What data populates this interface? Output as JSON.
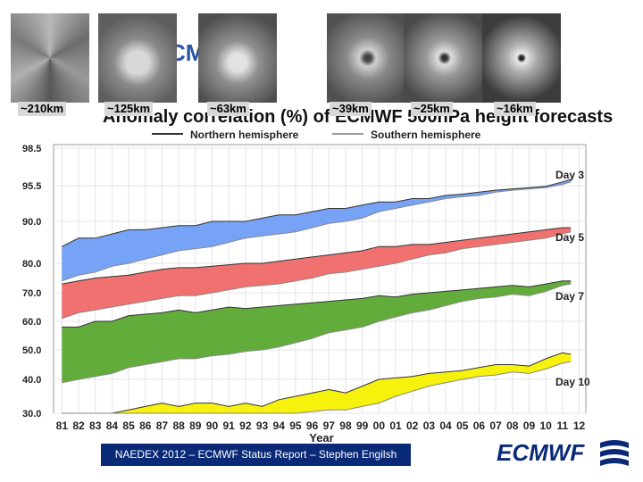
{
  "page": {
    "title_fragment": "tio  CMW  e",
    "footer": "NAEDEX 2012 – ECMWF Status Report – Stephen Engilsh",
    "brand": "ECMWF"
  },
  "resolutions": [
    "~210km",
    "~125km",
    "~63km",
    "~39km",
    "~25km",
    "~16km"
  ],
  "chart_data": {
    "type": "area",
    "title": "Anomaly correlation (%) of ECMWF 500hPa height forecasts",
    "xlabel": "Year",
    "ylabel": "",
    "x_tick_labels": [
      "81",
      "82",
      "83",
      "84",
      "85",
      "86",
      "87",
      "88",
      "89",
      "90",
      "91",
      "92",
      "93",
      "94",
      "95",
      "96",
      "97",
      "98",
      "99",
      "00",
      "01",
      "02",
      "03",
      "04",
      "05",
      "06",
      "07",
      "08",
      "09",
      "10",
      "11",
      "12"
    ],
    "x_range": [
      1981,
      2012
    ],
    "y_tick_labels": [
      "98.5",
      "95.5",
      "90.0",
      "80.0",
      "70.0",
      "60.0",
      "50.0",
      "40.0",
      "30.0"
    ],
    "y_ticks": [
      98.5,
      95.5,
      90.0,
      80.0,
      70.0,
      60.0,
      50.0,
      40.0,
      30.0
    ],
    "y_range": [
      30.0,
      98.5
    ],
    "legend": [
      {
        "name": "Northern hemisphere",
        "color": "#333333"
      },
      {
        "name": "Southern hemisphere",
        "color": "#999999"
      }
    ],
    "legend_position": "top",
    "grid": true,
    "series": [
      {
        "name": "Day 3",
        "color": "#6f9ef5",
        "nh": [
          [
            1981,
            84.0
          ],
          [
            1982,
            86.0
          ],
          [
            1983,
            86.0
          ],
          [
            1984,
            87.0
          ],
          [
            1985,
            88.0
          ],
          [
            1986,
            88.0
          ],
          [
            1987,
            88.5
          ],
          [
            1988,
            89.0
          ],
          [
            1989,
            89.0
          ],
          [
            1990,
            90.0
          ],
          [
            1991,
            90.0
          ],
          [
            1992,
            90.0
          ],
          [
            1993,
            90.5
          ],
          [
            1994,
            91.0
          ],
          [
            1995,
            91.0
          ],
          [
            1996,
            91.5
          ],
          [
            1997,
            92.0
          ],
          [
            1998,
            92.0
          ],
          [
            1999,
            92.5
          ],
          [
            2000,
            93.0
          ],
          [
            2001,
            93.0
          ],
          [
            2002,
            93.5
          ],
          [
            2003,
            93.5
          ],
          [
            2004,
            94.0
          ],
          [
            2005,
            94.2
          ],
          [
            2006,
            94.5
          ],
          [
            2007,
            94.8
          ],
          [
            2008,
            95.0
          ],
          [
            2009,
            95.2
          ],
          [
            2010,
            95.4
          ],
          [
            2011,
            95.8
          ],
          [
            2011.5,
            96.0
          ]
        ],
        "sh": [
          [
            1981,
            74.0
          ],
          [
            1982,
            76.0
          ],
          [
            1983,
            77.0
          ],
          [
            1984,
            79.0
          ],
          [
            1985,
            80.0
          ],
          [
            1986,
            81.0
          ],
          [
            1987,
            82.0
          ],
          [
            1988,
            83.0
          ],
          [
            1989,
            83.5
          ],
          [
            1990,
            84.0
          ],
          [
            1991,
            85.0
          ],
          [
            1992,
            86.0
          ],
          [
            1993,
            86.5
          ],
          [
            1994,
            87.0
          ],
          [
            1995,
            87.5
          ],
          [
            1996,
            88.5
          ],
          [
            1997,
            89.5
          ],
          [
            1998,
            90.0
          ],
          [
            1999,
            90.5
          ],
          [
            2000,
            91.5
          ],
          [
            2001,
            92.0
          ],
          [
            2002,
            92.5
          ],
          [
            2003,
            93.0
          ],
          [
            2004,
            93.5
          ],
          [
            2005,
            93.8
          ],
          [
            2006,
            94.0
          ],
          [
            2007,
            94.5
          ],
          [
            2008,
            94.8
          ],
          [
            2009,
            95.0
          ],
          [
            2010,
            95.2
          ],
          [
            2011,
            95.6
          ],
          [
            2011.5,
            95.8
          ]
        ]
      },
      {
        "name": "Day 5",
        "color": "#f06868",
        "nh": [
          [
            1981,
            73.0
          ],
          [
            1982,
            74.0
          ],
          [
            1983,
            75.0
          ],
          [
            1984,
            75.5
          ],
          [
            1985,
            76.0
          ],
          [
            1986,
            77.0
          ],
          [
            1987,
            78.0
          ],
          [
            1988,
            78.5
          ],
          [
            1989,
            78.5
          ],
          [
            1990,
            79.0
          ],
          [
            1991,
            79.5
          ],
          [
            1992,
            80.0
          ],
          [
            1993,
            80.0
          ],
          [
            1994,
            80.5
          ],
          [
            1995,
            81.0
          ],
          [
            1996,
            81.5
          ],
          [
            1997,
            82.0
          ],
          [
            1998,
            82.5
          ],
          [
            1999,
            83.0
          ],
          [
            2000,
            84.0
          ],
          [
            2001,
            84.0
          ],
          [
            2002,
            84.5
          ],
          [
            2003,
            84.5
          ],
          [
            2004,
            85.0
          ],
          [
            2005,
            85.5
          ],
          [
            2006,
            86.0
          ],
          [
            2007,
            86.5
          ],
          [
            2008,
            87.0
          ],
          [
            2009,
            87.5
          ],
          [
            2010,
            88.0
          ],
          [
            2011,
            88.5
          ],
          [
            2011.5,
            88.5
          ]
        ],
        "sh": [
          [
            1981,
            61.0
          ],
          [
            1982,
            63.0
          ],
          [
            1983,
            64.0
          ],
          [
            1984,
            65.0
          ],
          [
            1985,
            66.0
          ],
          [
            1986,
            67.0
          ],
          [
            1987,
            68.0
          ],
          [
            1988,
            69.0
          ],
          [
            1989,
            69.0
          ],
          [
            1990,
            70.0
          ],
          [
            1991,
            71.0
          ],
          [
            1992,
            72.0
          ],
          [
            1993,
            72.5
          ],
          [
            1994,
            73.0
          ],
          [
            1995,
            74.0
          ],
          [
            1996,
            75.0
          ],
          [
            1997,
            76.5
          ],
          [
            1998,
            77.0
          ],
          [
            1999,
            78.0
          ],
          [
            2000,
            79.0
          ],
          [
            2001,
            80.0
          ],
          [
            2002,
            81.0
          ],
          [
            2003,
            82.0
          ],
          [
            2004,
            82.5
          ],
          [
            2005,
            83.5
          ],
          [
            2006,
            84.0
          ],
          [
            2007,
            84.5
          ],
          [
            2008,
            85.0
          ],
          [
            2009,
            85.5
          ],
          [
            2010,
            86.0
          ],
          [
            2011,
            87.0
          ],
          [
            2011.5,
            87.5
          ]
        ]
      },
      {
        "name": "Day 7",
        "color": "#5aa832",
        "nh": [
          [
            1981,
            58.0
          ],
          [
            1982,
            58.0
          ],
          [
            1983,
            60.0
          ],
          [
            1984,
            60.0
          ],
          [
            1985,
            62.0
          ],
          [
            1986,
            62.5
          ],
          [
            1987,
            63.0
          ],
          [
            1988,
            64.0
          ],
          [
            1989,
            63.0
          ],
          [
            1990,
            64.0
          ],
          [
            1991,
            65.0
          ],
          [
            1992,
            64.5
          ],
          [
            1993,
            65.0
          ],
          [
            1994,
            65.5
          ],
          [
            1995,
            66.0
          ],
          [
            1996,
            66.5
          ],
          [
            1997,
            67.0
          ],
          [
            1998,
            67.5
          ],
          [
            1999,
            68.0
          ],
          [
            2000,
            69.0
          ],
          [
            2001,
            68.5
          ],
          [
            2002,
            69.5
          ],
          [
            2003,
            70.0
          ],
          [
            2004,
            70.5
          ],
          [
            2005,
            71.0
          ],
          [
            2006,
            71.5
          ],
          [
            2007,
            72.0
          ],
          [
            2008,
            72.5
          ],
          [
            2009,
            72.0
          ],
          [
            2010,
            73.0
          ],
          [
            2011,
            74.0
          ],
          [
            2011.5,
            74.0
          ]
        ],
        "sh": [
          [
            1981,
            39.0
          ],
          [
            1982,
            40.0
          ],
          [
            1983,
            41.0
          ],
          [
            1984,
            42.0
          ],
          [
            1985,
            44.0
          ],
          [
            1986,
            45.0
          ],
          [
            1987,
            46.0
          ],
          [
            1988,
            47.0
          ],
          [
            1989,
            47.0
          ],
          [
            1990,
            48.0
          ],
          [
            1991,
            48.5
          ],
          [
            1992,
            49.5
          ],
          [
            1993,
            50.0
          ],
          [
            1994,
            51.0
          ],
          [
            1995,
            52.5
          ],
          [
            1996,
            54.0
          ],
          [
            1997,
            56.0
          ],
          [
            1998,
            57.0
          ],
          [
            1999,
            58.0
          ],
          [
            2000,
            60.0
          ],
          [
            2001,
            61.5
          ],
          [
            2002,
            63.0
          ],
          [
            2003,
            64.0
          ],
          [
            2004,
            65.5
          ],
          [
            2005,
            67.0
          ],
          [
            2006,
            68.0
          ],
          [
            2007,
            68.5
          ],
          [
            2008,
            69.5
          ],
          [
            2009,
            69.0
          ],
          [
            2010,
            70.5
          ],
          [
            2011,
            72.5
          ],
          [
            2011.5,
            73.0
          ]
        ]
      },
      {
        "name": "Day 10",
        "color": "#f5f000",
        "nh": [
          [
            1981,
            30.0
          ],
          [
            1984,
            30.0
          ],
          [
            1985,
            31.0
          ],
          [
            1986,
            32.0
          ],
          [
            1987,
            33.0
          ],
          [
            1988,
            32.0
          ],
          [
            1989,
            33.0
          ],
          [
            1990,
            33.0
          ],
          [
            1991,
            32.0
          ],
          [
            1992,
            33.0
          ],
          [
            1993,
            32.0
          ],
          [
            1994,
            34.0
          ],
          [
            1995,
            35.0
          ],
          [
            1996,
            36.0
          ],
          [
            1997,
            37.0
          ],
          [
            1998,
            36.0
          ],
          [
            1999,
            38.0
          ],
          [
            2000,
            40.0
          ],
          [
            2001,
            40.5
          ],
          [
            2002,
            41.0
          ],
          [
            2003,
            42.0
          ],
          [
            2004,
            42.5
          ],
          [
            2005,
            43.0
          ],
          [
            2006,
            44.0
          ],
          [
            2007,
            45.0
          ],
          [
            2008,
            45.0
          ],
          [
            2009,
            44.5
          ],
          [
            2010,
            47.0
          ],
          [
            2011,
            49.0
          ],
          [
            2011.5,
            48.5
          ]
        ],
        "sh": [
          [
            1981,
            30.0
          ],
          [
            1990,
            30.0
          ],
          [
            1995,
            30.0
          ],
          [
            1996,
            30.5
          ],
          [
            1997,
            31.0
          ],
          [
            1998,
            31.0
          ],
          [
            1999,
            32.0
          ],
          [
            2000,
            33.0
          ],
          [
            2001,
            35.0
          ],
          [
            2002,
            36.5
          ],
          [
            2003,
            38.0
          ],
          [
            2004,
            39.0
          ],
          [
            2005,
            40.0
          ],
          [
            2006,
            41.0
          ],
          [
            2007,
            41.5
          ],
          [
            2008,
            42.5
          ],
          [
            2009,
            42.0
          ],
          [
            2010,
            43.5
          ],
          [
            2011,
            45.5
          ],
          [
            2011.5,
            46.0
          ]
        ]
      }
    ]
  }
}
